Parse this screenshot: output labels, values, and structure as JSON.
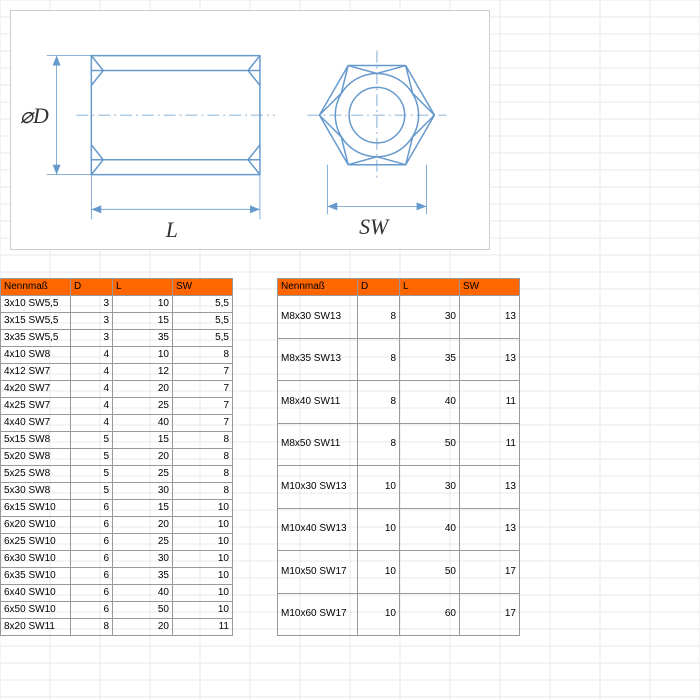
{
  "diagram": {
    "label_d": "⌀D",
    "label_l": "L",
    "label_sw": "SW"
  },
  "table_left": {
    "headers": [
      "Nennmaß",
      "D",
      "L",
      "SW"
    ],
    "rows": [
      [
        "3x10 SW5,5",
        "3",
        "10",
        "5,5"
      ],
      [
        "3x15 SW5,5",
        "3",
        "15",
        "5,5"
      ],
      [
        "3x35 SW5,5",
        "3",
        "35",
        "5,5"
      ],
      [
        "4x10 SW8",
        "4",
        "10",
        "8"
      ],
      [
        "4x12 SW7",
        "4",
        "12",
        "7"
      ],
      [
        "4x20 SW7",
        "4",
        "20",
        "7"
      ],
      [
        "4x25 SW7",
        "4",
        "25",
        "7"
      ],
      [
        "4x40 SW7",
        "4",
        "40",
        "7"
      ],
      [
        "5x15 SW8",
        "5",
        "15",
        "8"
      ],
      [
        "5x20 SW8",
        "5",
        "20",
        "8"
      ],
      [
        "5x25 SW8",
        "5",
        "25",
        "8"
      ],
      [
        "5x30 SW8",
        "5",
        "30",
        "8"
      ],
      [
        "6x15 SW10",
        "6",
        "15",
        "10"
      ],
      [
        "6x20 SW10",
        "6",
        "20",
        "10"
      ],
      [
        "6x25 SW10",
        "6",
        "25",
        "10"
      ],
      [
        "6x30 SW10",
        "6",
        "30",
        "10"
      ],
      [
        "6x35 SW10",
        "6",
        "35",
        "10"
      ],
      [
        "6x40 SW10",
        "6",
        "40",
        "10"
      ],
      [
        "6x50 SW10",
        "6",
        "50",
        "10"
      ],
      [
        "8x20 SW11",
        "8",
        "20",
        "11"
      ]
    ]
  },
  "table_right": {
    "headers": [
      "Nennmaß",
      "D",
      "L",
      "SW"
    ],
    "rows": [
      [
        "M8x30 SW13",
        "8",
        "30",
        "13"
      ],
      [
        "M8x35 SW13",
        "8",
        "35",
        "13"
      ],
      [
        "M8x40 SW11",
        "8",
        "40",
        "11"
      ],
      [
        "M8x50 SW11",
        "8",
        "50",
        "11"
      ],
      [
        "M10x30 SW13",
        "10",
        "30",
        "13"
      ],
      [
        "M10x40 SW13",
        "10",
        "40",
        "13"
      ],
      [
        "M10x50 SW17",
        "10",
        "50",
        "17"
      ],
      [
        "M10x60 SW17",
        "10",
        "60",
        "17"
      ]
    ]
  },
  "colors": {
    "header_bg": "#ff6600",
    "border": "#999999",
    "grid": "#d4d4d4",
    "diagram_stroke": "#6699cc"
  }
}
